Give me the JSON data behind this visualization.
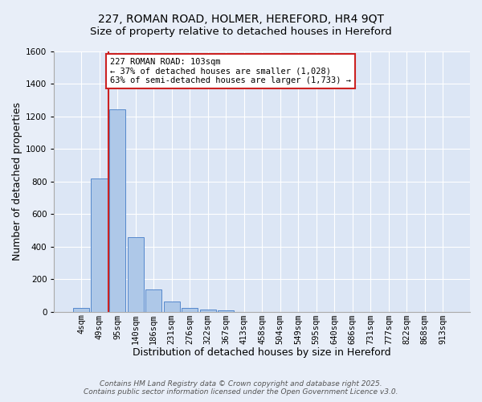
{
  "title": "227, ROMAN ROAD, HOLMER, HEREFORD, HR4 9QT",
  "subtitle": "Size of property relative to detached houses in Hereford",
  "xlabel": "Distribution of detached houses by size in Hereford",
  "ylabel": "Number of detached properties",
  "bar_labels": [
    "4sqm",
    "49sqm",
    "95sqm",
    "140sqm",
    "186sqm",
    "231sqm",
    "276sqm",
    "322sqm",
    "367sqm",
    "413sqm",
    "458sqm",
    "504sqm",
    "549sqm",
    "595sqm",
    "640sqm",
    "686sqm",
    "731sqm",
    "777sqm",
    "822sqm",
    "868sqm",
    "913sqm"
  ],
  "bar_values": [
    25,
    820,
    1245,
    460,
    135,
    60,
    25,
    15,
    10,
    0,
    0,
    0,
    0,
    0,
    0,
    0,
    0,
    0,
    0,
    0,
    0
  ],
  "bar_color": "#aec8e8",
  "bar_edgecolor": "#5588cc",
  "fig_facecolor": "#e8eef8",
  "ax_facecolor": "#dce6f5",
  "grid_color": "#ffffff",
  "vline_x": 1.5,
  "vline_color": "#cc2222",
  "annotation_text": "227 ROMAN ROAD: 103sqm\n← 37% of detached houses are smaller (1,028)\n63% of semi-detached houses are larger (1,733) →",
  "annotation_box_facecolor": "#ffffff",
  "annotation_box_edgecolor": "#cc2222",
  "ylim": [
    0,
    1600
  ],
  "yticks": [
    0,
    200,
    400,
    600,
    800,
    1000,
    1200,
    1400,
    1600
  ],
  "footer1": "Contains HM Land Registry data © Crown copyright and database right 2025.",
  "footer2": "Contains public sector information licensed under the Open Government Licence v3.0.",
  "title_fontsize": 10,
  "subtitle_fontsize": 9.5,
  "axis_label_fontsize": 9,
  "tick_fontsize": 7.5,
  "annotation_fontsize": 7.5,
  "footer_fontsize": 6.5
}
